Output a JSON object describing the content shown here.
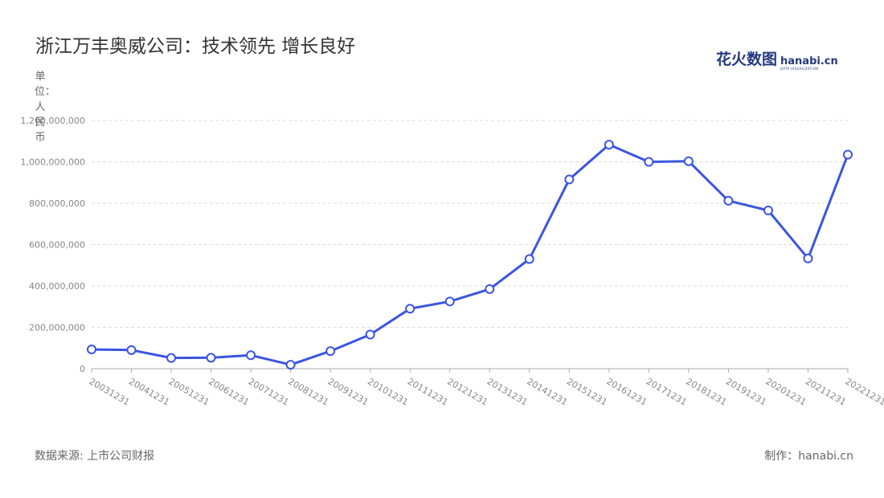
{
  "title": "浙江万丰奥威公司：技术领先 增长良好",
  "logo": {
    "cn": "花火数图",
    "en": "hanabi.cn",
    "sub": "DATA VISUALIZATION"
  },
  "unit_label": "单位：人民币",
  "source": "数据来源: 上市公司财报",
  "credit": "制作：hanabi.cn",
  "colors": {
    "line": "#3b55e0",
    "point_fill": "#ffffff",
    "grid": "#dddddd",
    "axis": "#aaaaaa"
  },
  "chart_data": {
    "type": "line",
    "title": "浙江万丰奥威公司：技术领先 增长良好",
    "ylabel": "单位：人民币",
    "ylim": [
      0,
      1200000000
    ],
    "yticks": [
      0,
      200000000,
      400000000,
      600000000,
      800000000,
      1000000000,
      1200000000
    ],
    "ytick_labels": [
      "0",
      "200,000,000",
      "400,000,000",
      "600,000,000",
      "800,000,000",
      "1,000,000,000",
      "1,200,000,000"
    ],
    "grid": true,
    "categories": [
      "20031231",
      "20041231",
      "20051231",
      "20061231",
      "20071231",
      "20081231",
      "20091231",
      "20101231",
      "20111231",
      "20121231",
      "20131231",
      "20141231",
      "20151231",
      "20161231",
      "20171231",
      "20181231",
      "20191231",
      "20201231",
      "20211231",
      "20221231"
    ],
    "series": [
      {
        "values": [
          93000000,
          90000000,
          52000000,
          53000000,
          65000000,
          19000000,
          85000000,
          165000000,
          290000000,
          325000000,
          385000000,
          530000000,
          915000000,
          1083000000,
          1000000000,
          1003000000,
          812000000,
          765000000,
          533000000,
          1035000000
        ]
      }
    ]
  }
}
